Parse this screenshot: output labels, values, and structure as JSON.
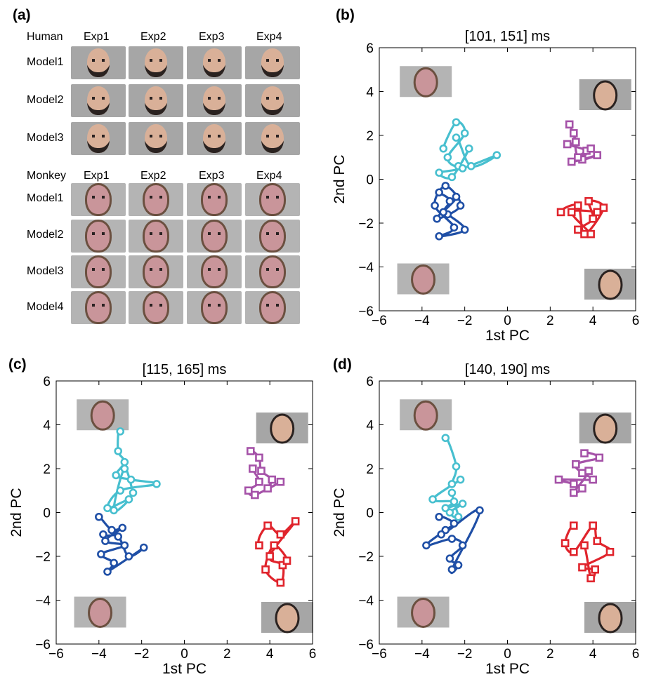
{
  "panel_a": {
    "letter": "(a)",
    "human": {
      "row_header": "Human",
      "columns": [
        "Exp1",
        "Exp2",
        "Exp3",
        "Exp4"
      ],
      "rows": [
        "Model1",
        "Model2",
        "Model3"
      ]
    },
    "monkey": {
      "row_header": "Monkey",
      "columns": [
        "Exp1",
        "Exp2",
        "Exp3",
        "Exp4"
      ],
      "rows": [
        "Model1",
        "Model2",
        "Model3",
        "Model4"
      ]
    }
  },
  "chart_data": [
    {
      "panel": "(b)",
      "type": "scatter",
      "title": "[101, 151] ms",
      "xlabel": "1st PC",
      "ylabel": "2nd PC",
      "xlim": [
        -6,
        6
      ],
      "ylim": [
        -6,
        6
      ],
      "xticks": [
        "−6",
        "−4",
        "−2",
        "0",
        "2",
        "4",
        "6"
      ],
      "yticks": [
        "−6",
        "−4",
        "−2",
        "0",
        "2",
        "4",
        "6"
      ],
      "grid": false,
      "series": [
        {
          "color": "#47bfcf",
          "marker": "circle",
          "points": [
            [
              -3.0,
              1.4
            ],
            [
              -2.4,
              2.6
            ],
            [
              -2.0,
              2.1
            ],
            [
              -2.8,
              1.0
            ],
            [
              -2.3,
              0.6
            ],
            [
              -1.8,
              1.4
            ],
            [
              -2.6,
              0.1
            ],
            [
              -3.2,
              0.3
            ],
            [
              -2.1,
              0.5
            ],
            [
              -0.5,
              1.1
            ],
            [
              -1.7,
              0.6
            ],
            [
              -2.4,
              1.9
            ]
          ]
        },
        {
          "color": "#1f4fa6",
          "marker": "circle",
          "points": [
            [
              -3.2,
              -0.6
            ],
            [
              -2.7,
              -1.0
            ],
            [
              -3.3,
              -1.8
            ],
            [
              -2.2,
              -1.2
            ],
            [
              -2.9,
              -0.3
            ],
            [
              -3.4,
              -1.2
            ],
            [
              -2.5,
              -2.2
            ],
            [
              -3.2,
              -2.6
            ],
            [
              -2.0,
              -2.3
            ],
            [
              -2.8,
              -1.6
            ],
            [
              -3.0,
              -1.5
            ],
            [
              -2.4,
              -0.8
            ]
          ]
        },
        {
          "color": "#a552a8",
          "marker": "square",
          "points": [
            [
              2.9,
              2.5
            ],
            [
              3.2,
              1.7
            ],
            [
              2.8,
              1.6
            ],
            [
              3.7,
              1.3
            ],
            [
              3.5,
              0.9
            ],
            [
              4.2,
              1.1
            ],
            [
              3.0,
              0.8
            ],
            [
              3.9,
              1.4
            ],
            [
              3.3,
              1.0
            ],
            [
              3.1,
              2.1
            ]
          ]
        },
        {
          "color": "#e0242c",
          "marker": "square",
          "points": [
            [
              2.5,
              -1.5
            ],
            [
              3.3,
              -1.2
            ],
            [
              3.6,
              -2.5
            ],
            [
              4.5,
              -1.3
            ],
            [
              3.8,
              -1.0
            ],
            [
              4.0,
              -1.8
            ],
            [
              3.3,
              -2.3
            ],
            [
              3.9,
              -2.5
            ],
            [
              3.0,
              -1.5
            ],
            [
              4.2,
              -1.5
            ]
          ]
        }
      ],
      "legend": "none"
    },
    {
      "panel": "(c)",
      "type": "scatter",
      "title": "[115, 165] ms",
      "xlabel": "1st PC",
      "ylabel": "2nd PC",
      "xlim": [
        -6,
        6
      ],
      "ylim": [
        -6,
        6
      ],
      "xticks": [
        "−6",
        "−4",
        "−2",
        "0",
        "2",
        "4",
        "6"
      ],
      "yticks": [
        "−6",
        "−4",
        "−2",
        "0",
        "2",
        "4",
        "6"
      ],
      "grid": false,
      "series": [
        {
          "color": "#47bfcf",
          "marker": "circle",
          "points": [
            [
              -3.0,
              3.7
            ],
            [
              -3.1,
              2.8
            ],
            [
              -2.8,
              2.3
            ],
            [
              -3.2,
              1.7
            ],
            [
              -2.5,
              1.5
            ],
            [
              -1.3,
              1.3
            ],
            [
              -3.0,
              1.0
            ],
            [
              -3.6,
              0.2
            ],
            [
              -2.6,
              0.6
            ],
            [
              -3.3,
              0.1
            ],
            [
              -2.8,
              2.0
            ],
            [
              -2.4,
              0.9
            ]
          ]
        },
        {
          "color": "#1f4fa6",
          "marker": "circle",
          "points": [
            [
              -4.0,
              -0.2
            ],
            [
              -3.4,
              -0.8
            ],
            [
              -2.9,
              -0.7
            ],
            [
              -3.7,
              -1.3
            ],
            [
              -2.8,
              -1.5
            ],
            [
              -3.9,
              -1.9
            ],
            [
              -3.3,
              -2.3
            ],
            [
              -3.6,
              -2.7
            ],
            [
              -1.9,
              -1.6
            ],
            [
              -2.6,
              -2.0
            ],
            [
              -3.1,
              -1.1
            ],
            [
              -3.8,
              -1.0
            ]
          ]
        },
        {
          "color": "#a552a8",
          "marker": "square",
          "points": [
            [
              3.1,
              2.8
            ],
            [
              3.5,
              2.5
            ],
            [
              3.6,
              1.9
            ],
            [
              4.1,
              1.5
            ],
            [
              3.9,
              1.1
            ],
            [
              4.5,
              1.4
            ],
            [
              3.3,
              0.8
            ],
            [
              3.0,
              1.0
            ],
            [
              3.5,
              1.4
            ],
            [
              3.2,
              2.0
            ]
          ]
        },
        {
          "color": "#e0242c",
          "marker": "square",
          "points": [
            [
              3.5,
              -1.5
            ],
            [
              3.9,
              -0.6
            ],
            [
              4.5,
              -1.0
            ],
            [
              5.2,
              -0.4
            ],
            [
              4.0,
              -2.0
            ],
            [
              4.6,
              -2.4
            ],
            [
              4.5,
              -3.2
            ],
            [
              3.8,
              -2.6
            ],
            [
              4.2,
              -1.5
            ],
            [
              4.8,
              -2.2
            ]
          ]
        }
      ],
      "legend": "none"
    },
    {
      "panel": "(d)",
      "type": "scatter",
      "title": "[140, 190] ms",
      "xlabel": "1st PC",
      "ylabel": "2nd PC",
      "xlim": [
        -6,
        6
      ],
      "ylim": [
        -6,
        6
      ],
      "xticks": [
        "−6",
        "−4",
        "−2",
        "0",
        "2",
        "4",
        "6"
      ],
      "yticks": [
        "−6",
        "−4",
        "−2",
        "0",
        "2",
        "4",
        "6"
      ],
      "grid": false,
      "series": [
        {
          "color": "#47bfcf",
          "marker": "circle",
          "points": [
            [
              -2.9,
              3.4
            ],
            [
              -2.4,
              2.1
            ],
            [
              -2.6,
              1.3
            ],
            [
              -2.2,
              1.5
            ],
            [
              -3.5,
              0.6
            ],
            [
              -2.5,
              0.5
            ],
            [
              -2.9,
              0.2
            ],
            [
              -2.1,
              0.4
            ],
            [
              -2.7,
              0.0
            ],
            [
              -2.3,
              -0.2
            ],
            [
              -2.6,
              0.9
            ]
          ]
        },
        {
          "color": "#1f4fa6",
          "marker": "circle",
          "points": [
            [
              -3.2,
              -0.2
            ],
            [
              -2.5,
              -0.5
            ],
            [
              -2.9,
              -0.8
            ],
            [
              -3.8,
              -1.5
            ],
            [
              -2.6,
              -1.2
            ],
            [
              -2.1,
              -1.5
            ],
            [
              -2.7,
              -2.1
            ],
            [
              -2.3,
              -2.4
            ],
            [
              -2.6,
              -2.6
            ],
            [
              -1.3,
              0.1
            ],
            [
              -3.1,
              -1.0
            ]
          ]
        },
        {
          "color": "#a552a8",
          "marker": "square",
          "points": [
            [
              3.6,
              2.7
            ],
            [
              4.3,
              2.5
            ],
            [
              3.2,
              2.2
            ],
            [
              3.5,
              1.8
            ],
            [
              4.0,
              1.5
            ],
            [
              2.4,
              1.5
            ],
            [
              3.1,
              1.3
            ],
            [
              3.5,
              1.1
            ],
            [
              3.1,
              0.9
            ],
            [
              3.8,
              1.9
            ]
          ]
        },
        {
          "color": "#e0242c",
          "marker": "square",
          "points": [
            [
              3.1,
              -0.6
            ],
            [
              2.7,
              -1.4
            ],
            [
              3.1,
              -1.8
            ],
            [
              4.0,
              -0.6
            ],
            [
              4.2,
              -1.3
            ],
            [
              4.8,
              -1.8
            ],
            [
              3.5,
              -2.5
            ],
            [
              4.1,
              -2.6
            ],
            [
              3.9,
              -3.0
            ],
            [
              3.6,
              -1.5
            ]
          ]
        }
      ],
      "legend": "none"
    }
  ]
}
